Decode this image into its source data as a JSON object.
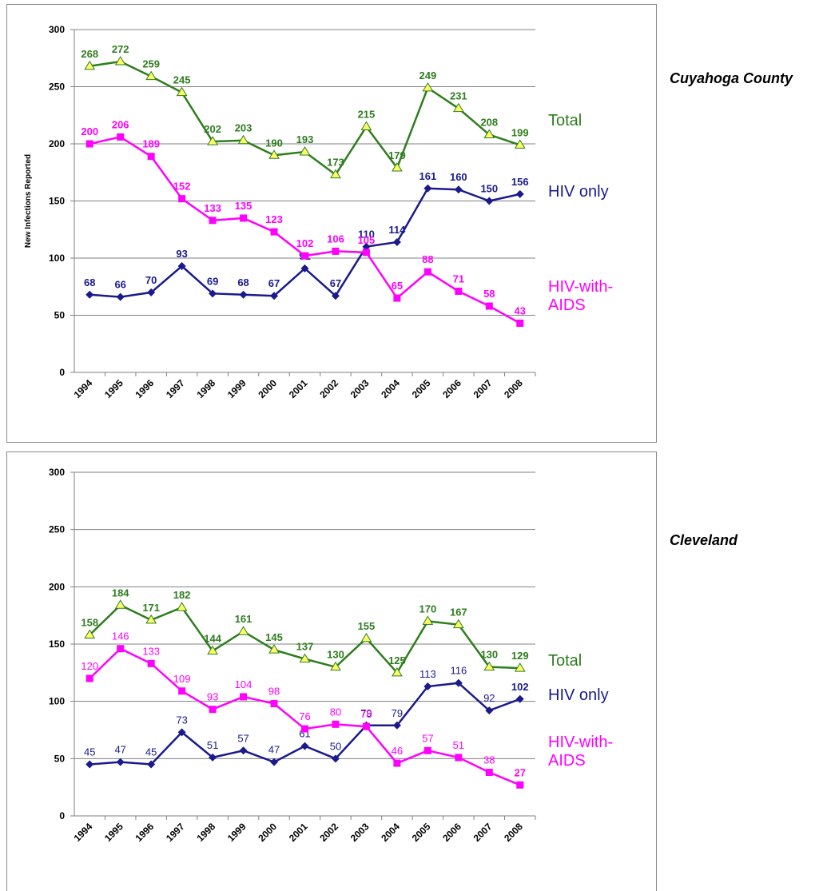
{
  "chart_data": [
    {
      "type": "line",
      "title": "Cuyahoga County",
      "y_label": "New Infections Reported",
      "categories": [
        "1994",
        "1995",
        "1996",
        "1997",
        "1998",
        "1999",
        "2000",
        "2001",
        "2002",
        "2003",
        "2004",
        "2005",
        "2006",
        "2007",
        "2008"
      ],
      "series": [
        {
          "name": "Total",
          "color": "#2e7d1e",
          "marker": "triangle",
          "marker_fill": "#ffff66",
          "values": [
            268,
            272,
            259,
            245,
            202,
            203,
            190,
            193,
            173,
            215,
            179,
            249,
            231,
            208,
            199
          ]
        },
        {
          "name": "HIV only",
          "color": "#1a1a8c",
          "marker": "diamond",
          "marker_fill": "#1a1a8c",
          "values": [
            68,
            66,
            70,
            93,
            69,
            68,
            67,
            91,
            67,
            110,
            114,
            161,
            160,
            150,
            156
          ]
        },
        {
          "name": "HIV-with-AIDS",
          "color": "#ff00ff",
          "marker": "square",
          "marker_fill": "#ff00ff",
          "values": [
            200,
            206,
            189,
            152,
            133,
            135,
            123,
            102,
            106,
            105,
            65,
            88,
            71,
            58,
            43
          ]
        }
      ],
      "ylim": [
        0,
        300
      ],
      "yticks": [
        0,
        50,
        100,
        150,
        200,
        250,
        300
      ],
      "grid": true
    },
    {
      "type": "line",
      "title": "Cleveland",
      "categories": [
        "1994",
        "1995",
        "1996",
        "1997",
        "1998",
        "1999",
        "2000",
        "2001",
        "2002",
        "2003",
        "2004",
        "2005",
        "2006",
        "2007",
        "2008"
      ],
      "series": [
        {
          "name": "Total",
          "color": "#2e7d1e",
          "marker": "triangle",
          "marker_fill": "#ffff66",
          "values": [
            158,
            184,
            171,
            182,
            144,
            161,
            145,
            137,
            130,
            155,
            125,
            170,
            167,
            130,
            129
          ]
        },
        {
          "name": "HIV only",
          "color": "#1a1a8c",
          "marker": "diamond",
          "marker_fill": "#1a1a8c",
          "values": [
            45,
            47,
            45,
            73,
            51,
            57,
            47,
            61,
            50,
            79,
            79,
            113,
            116,
            92,
            102
          ]
        },
        {
          "name": "HIV-with-AIDS",
          "color": "#ff00ff",
          "marker": "square",
          "marker_fill": "#ff00ff",
          "values": [
            120,
            146,
            133,
            109,
            93,
            104,
            98,
            76,
            80,
            78,
            46,
            57,
            51,
            38,
            27
          ]
        }
      ],
      "ylim": [
        0,
        300
      ],
      "yticks": [
        0,
        50,
        100,
        150,
        200,
        250,
        300
      ],
      "grid": true
    }
  ]
}
